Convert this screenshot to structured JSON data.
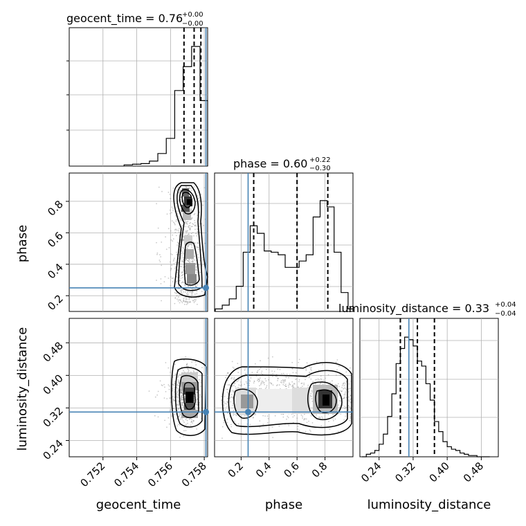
{
  "chart_data": [
    {
      "type": "histogram",
      "panel": "geocent_time",
      "title": "geocent_time = 0.76",
      "title_value_sup": "+0.00",
      "title_value_sub": "−0.00",
      "x": [
        0.7535,
        0.754,
        0.7545,
        0.755,
        0.7555,
        0.756,
        0.7565,
        0.757,
        0.7575,
        0.758
      ],
      "density": [
        0.01,
        0.015,
        0.02,
        0.04,
        0.1,
        0.22,
        0.6,
        0.79,
        0.95,
        0.52
      ],
      "xlim": [
        0.75,
        0.7582
      ],
      "quantiles": [
        0.7568,
        0.7574,
        0.7578
      ],
      "truth": 0.7581
    },
    {
      "type": "scatter-contour",
      "panel": "geocent_time vs phase",
      "xlabel": "",
      "ylabel": "phase",
      "xlim": [
        0.75,
        0.7582
      ],
      "ylim": [
        0.1,
        0.98
      ],
      "yticks": [
        "0.2",
        "0.4",
        "0.6",
        "0.8"
      ],
      "truth": [
        0.7581,
        0.25
      ],
      "density_peaks": [
        [
          0.7574,
          0.82
        ],
        [
          0.7576,
          0.77
        ],
        [
          0.7578,
          0.35
        ]
      ]
    },
    {
      "type": "histogram",
      "panel": "phase",
      "title": "phase = 0.60",
      "title_value_sup": "+0.22",
      "title_value_sub": "−0.30",
      "x": [
        0.04,
        0.09,
        0.14,
        0.19,
        0.24,
        0.29,
        0.34,
        0.39,
        0.44,
        0.49,
        0.54,
        0.59,
        0.64,
        0.69,
        0.74,
        0.79,
        0.84,
        0.89,
        0.94,
        0.99
      ],
      "density": [
        0.02,
        0.05,
        0.1,
        0.2,
        0.47,
        0.68,
        0.62,
        0.48,
        0.47,
        0.45,
        0.35,
        0.35,
        0.4,
        0.45,
        0.75,
        0.88,
        0.83,
        0.47,
        0.15,
        0.02
      ],
      "xlim": [
        0.01,
        1.0
      ],
      "quantiles": [
        0.29,
        0.6,
        0.82
      ],
      "truth": 0.25
    },
    {
      "type": "scatter-contour",
      "panel": "geocent_time vs luminosity_distance",
      "xlabel": "geocent_time",
      "ylabel": "luminosity_distance",
      "xlim": [
        0.75,
        0.7582
      ],
      "ylim": [
        0.2,
        0.54
      ],
      "xticks": [
        "0.752",
        "0.754",
        "0.756",
        "0.758"
      ],
      "yticks": [
        "0.24",
        "0.32",
        "0.40",
        "0.48"
      ],
      "truth": [
        0.7581,
        0.31
      ]
    },
    {
      "type": "scatter-contour",
      "panel": "phase vs luminosity_distance",
      "xlabel": "phase",
      "ylabel": "",
      "xlim": [
        0.01,
        1.0
      ],
      "ylim": [
        0.2,
        0.54
      ],
      "xticks": [
        "0.2",
        "0.4",
        "0.6",
        "0.8"
      ],
      "truth": [
        0.25,
        0.31
      ]
    },
    {
      "type": "histogram",
      "panel": "luminosity_distance",
      "title": "luminosity_distance = 0.33",
      "title_value_sup": "+0.04",
      "title_value_sub": "−0.04",
      "xlabel": "luminosity_distance",
      "x": [
        0.205,
        0.215,
        0.225,
        0.235,
        0.245,
        0.255,
        0.265,
        0.275,
        0.285,
        0.295,
        0.305,
        0.315,
        0.325,
        0.335,
        0.345,
        0.355,
        0.365,
        0.375,
        0.385,
        0.395,
        0.405,
        0.415,
        0.425,
        0.435,
        0.445,
        0.455,
        0.465,
        0.475,
        0.485,
        0.495
      ],
      "density": [
        0.0,
        0.02,
        0.03,
        0.05,
        0.1,
        0.18,
        0.32,
        0.5,
        0.74,
        0.86,
        0.95,
        0.93,
        0.88,
        0.76,
        0.72,
        0.58,
        0.45,
        0.28,
        0.2,
        0.12,
        0.08,
        0.06,
        0.05,
        0.03,
        0.02,
        0.01,
        0.01,
        0.0,
        0.0,
        0.0
      ],
      "xlim": [
        0.195,
        0.52
      ],
      "xticks": [
        "0.24",
        "0.32",
        "0.40",
        "0.48"
      ],
      "quantiles": [
        0.29,
        0.33,
        0.37
      ],
      "truth": 0.31
    }
  ],
  "colors": {
    "truth": "#4682b4",
    "hist": "#000000",
    "grid": "#b0b0b0"
  }
}
